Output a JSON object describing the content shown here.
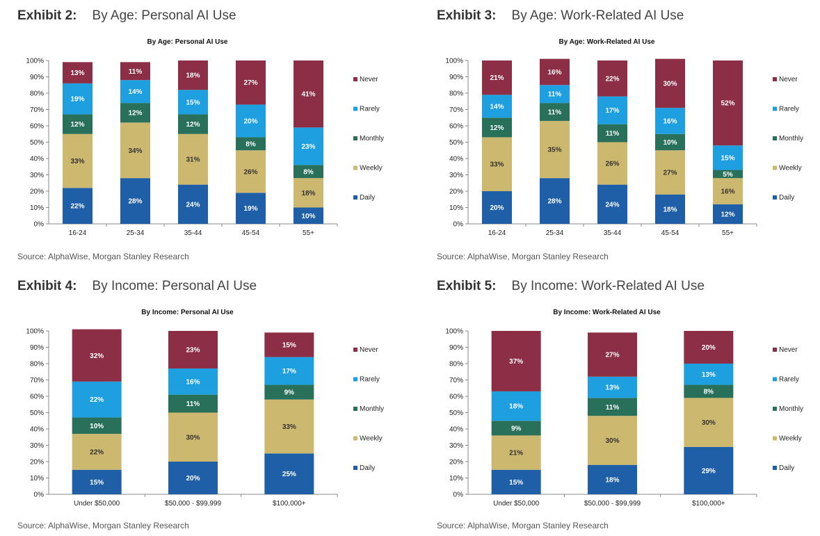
{
  "exhibits": [
    {
      "number": "Exhibit 2:",
      "title": "By Age: Personal AI Use",
      "source": "Source: AlphaWise, Morgan Stanley Research"
    },
    {
      "number": "Exhibit 3:",
      "title": "By Age: Work-Related AI Use",
      "source": "Source: AlphaWise, Morgan Stanley Research"
    },
    {
      "number": "Exhibit 4:",
      "title": "By Income: Personal AI Use",
      "source": "Source: AlphaWise, Morgan Stanley Research"
    },
    {
      "number": "Exhibit 5:",
      "title": "By Income: Work-Related AI Use",
      "source": "Source: AlphaWise, Morgan Stanley Research"
    }
  ],
  "colors": {
    "Daily": "#1f5fa8",
    "Weekly": "#cdb86f",
    "Monthly": "#28705a",
    "Rarely": "#1ea0e0",
    "Never": "#8b2e46"
  },
  "chart_data": [
    {
      "type": "bar",
      "stacked": true,
      "title": "By Age: Personal AI Use",
      "categories": [
        "16-24",
        "25-34",
        "35-44",
        "45-54",
        "55+"
      ],
      "y_ticks": [
        "0%",
        "10%",
        "20%",
        "30%",
        "40%",
        "50%",
        "60%",
        "70%",
        "80%",
        "90%",
        "100%"
      ],
      "ylim": [
        0,
        100
      ],
      "legend_position": "right",
      "series": [
        {
          "name": "Daily",
          "values": [
            22,
            28,
            24,
            19,
            10
          ]
        },
        {
          "name": "Weekly",
          "values": [
            33,
            34,
            31,
            26,
            18
          ]
        },
        {
          "name": "Monthly",
          "values": [
            12,
            12,
            12,
            8,
            8
          ]
        },
        {
          "name": "Rarely",
          "values": [
            19,
            14,
            15,
            20,
            23
          ]
        },
        {
          "name": "Never",
          "values": [
            13,
            11,
            18,
            27,
            41
          ]
        }
      ]
    },
    {
      "type": "bar",
      "stacked": true,
      "title": "By Age: Work-Related AI Use",
      "categories": [
        "16-24",
        "25-34",
        "35-44",
        "45-54",
        "55+"
      ],
      "y_ticks": [
        "0%",
        "10%",
        "20%",
        "30%",
        "40%",
        "50%",
        "60%",
        "70%",
        "80%",
        "90%",
        "100%"
      ],
      "ylim": [
        0,
        100
      ],
      "legend_position": "right",
      "series": [
        {
          "name": "Daily",
          "values": [
            20,
            28,
            24,
            18,
            12
          ]
        },
        {
          "name": "Weekly",
          "values": [
            33,
            35,
            26,
            27,
            16
          ]
        },
        {
          "name": "Monthly",
          "values": [
            12,
            11,
            11,
            10,
            5
          ]
        },
        {
          "name": "Rarely",
          "values": [
            14,
            11,
            17,
            16,
            15
          ]
        },
        {
          "name": "Never",
          "values": [
            21,
            16,
            22,
            30,
            52
          ]
        }
      ]
    },
    {
      "type": "bar",
      "stacked": true,
      "title": "By Income: Personal  AI Use",
      "categories": [
        "Under $50,000",
        "$50,000 - $99,999",
        "$100,000+"
      ],
      "y_ticks": [
        "0%",
        "10%",
        "20%",
        "30%",
        "40%",
        "50%",
        "60%",
        "70%",
        "80%",
        "90%",
        "100%"
      ],
      "ylim": [
        0,
        100
      ],
      "legend_position": "right",
      "series": [
        {
          "name": "Daily",
          "values": [
            15,
            20,
            25
          ]
        },
        {
          "name": "Weekly",
          "values": [
            22,
            30,
            33
          ]
        },
        {
          "name": "Monthly",
          "values": [
            10,
            11,
            9
          ]
        },
        {
          "name": "Rarely",
          "values": [
            22,
            16,
            17
          ]
        },
        {
          "name": "Never",
          "values": [
            32,
            23,
            15
          ]
        }
      ]
    },
    {
      "type": "bar",
      "stacked": true,
      "title": "By Income: Work-Related AI Use",
      "categories": [
        "Under $50,000",
        "$50,000 - $99,999",
        "$100,000+"
      ],
      "y_ticks": [
        "0%",
        "10%",
        "20%",
        "30%",
        "40%",
        "50%",
        "60%",
        "70%",
        "80%",
        "90%",
        "100%"
      ],
      "ylim": [
        0,
        100
      ],
      "legend_position": "right",
      "series": [
        {
          "name": "Daily",
          "values": [
            15,
            18,
            29
          ]
        },
        {
          "name": "Weekly",
          "values": [
            21,
            30,
            30
          ]
        },
        {
          "name": "Monthly",
          "values": [
            9,
            11,
            8
          ]
        },
        {
          "name": "Rarely",
          "values": [
            18,
            13,
            13
          ]
        },
        {
          "name": "Never",
          "values": [
            37,
            27,
            20
          ]
        }
      ]
    }
  ]
}
